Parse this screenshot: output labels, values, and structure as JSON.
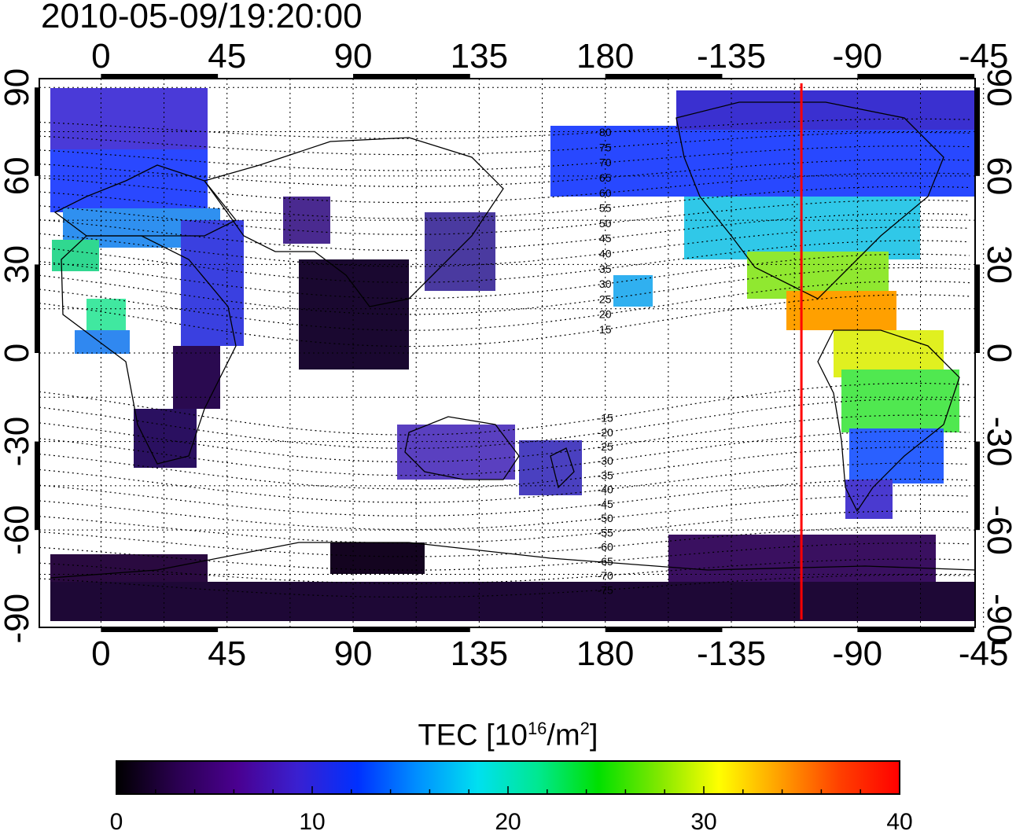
{
  "timestamp": "2010-05-09/19:20:00",
  "map": {
    "lon_ticks": [
      0,
      45,
      90,
      135,
      180,
      -135,
      -90,
      -45
    ],
    "lon_tick_labels": [
      "0",
      "45",
      "90",
      "135",
      "180",
      "-135",
      "-90",
      "-45"
    ],
    "lat_ticks": [
      90,
      60,
      30,
      0,
      -30,
      -60,
      -90
    ],
    "lat_tick_labels": [
      "90",
      "60",
      "30",
      "0",
      "-30",
      "-60",
      "-90"
    ],
    "grid": "dotted",
    "terminator_longitude": -110,
    "terminator_color": "#ff0000",
    "mlat_labels": [
      "80",
      "75",
      "70",
      "65",
      "60",
      "55",
      "50",
      "45",
      "40",
      "35",
      "30",
      "25",
      "20",
      "15",
      "-15",
      "-20",
      "-25",
      "-30",
      "-35",
      "-40",
      "-45",
      "-50",
      "-55",
      "-60",
      "-65",
      "-70",
      "-75"
    ]
  },
  "colorbar": {
    "title_main": "TEC  [10",
    "title_sup1": "16",
    "title_mid": "/m",
    "title_sup2": "2",
    "title_end": "]",
    "min": 0,
    "max": 40,
    "tick_labels": [
      "0",
      "10",
      "20",
      "30",
      "40"
    ],
    "colormap": [
      "#000000",
      "#2a0050",
      "#4a0090",
      "#3a20d0",
      "#0030ff",
      "#0090ff",
      "#00e0f0",
      "#00e890",
      "#00e000",
      "#80e800",
      "#ffff00",
      "#ffa000",
      "#ff4000",
      "#ff0000"
    ]
  }
}
